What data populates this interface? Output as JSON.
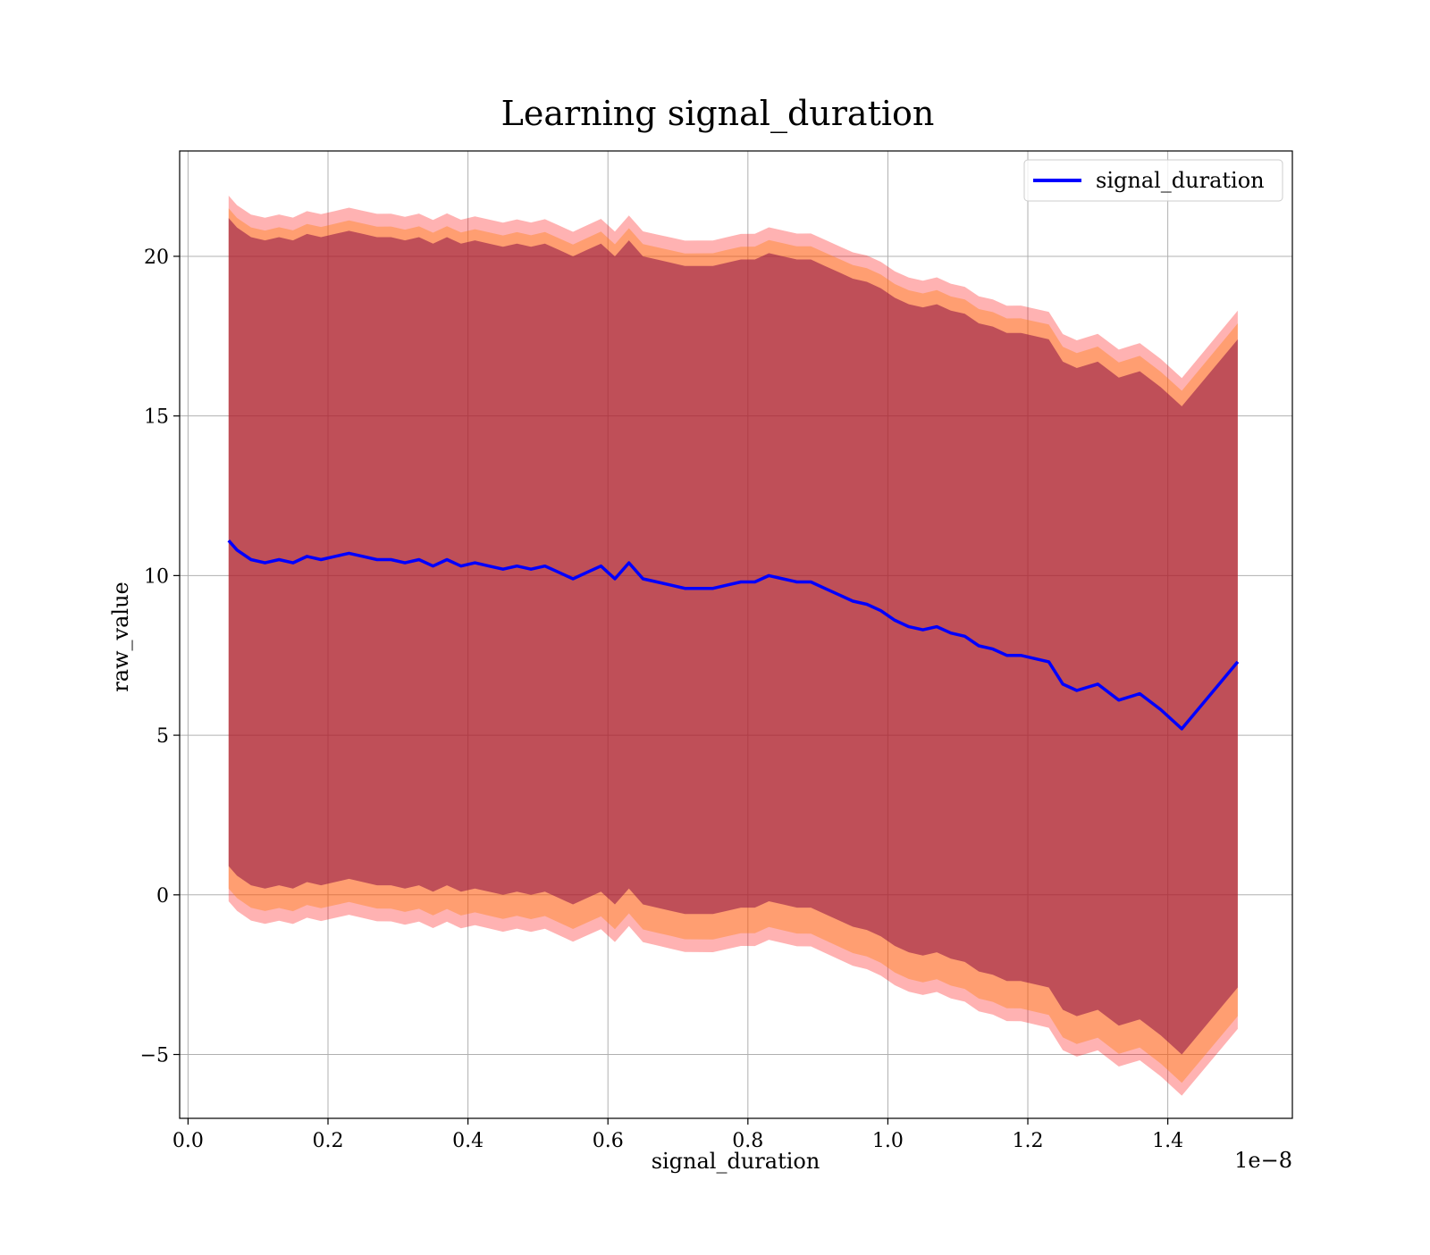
{
  "chart_data": {
    "type": "line",
    "title": "Learning signal_duration",
    "xlabel": "signal_duration",
    "ylabel": "raw_value",
    "x_offset_label": "1e−8",
    "xlim": [
      -0.012,
      1.578
    ],
    "ylim": [
      -7.0,
      23.3
    ],
    "xticks": [
      0.0,
      0.2,
      0.4,
      0.6,
      0.8,
      1.0,
      1.2,
      1.4
    ],
    "xtick_labels": [
      "0.0",
      "0.2",
      "0.4",
      "0.6",
      "0.8",
      "1.0",
      "1.2",
      "1.4"
    ],
    "yticks": [
      -5,
      0,
      5,
      10,
      15,
      20
    ],
    "ytick_labels": [
      "−5",
      "0",
      "5",
      "10",
      "15",
      "20"
    ],
    "grid": true,
    "legend": {
      "position": "upper right",
      "entries": [
        "signal_duration"
      ]
    },
    "colors": {
      "line": "#0000ff",
      "band_outer": "#ff0000",
      "band_middle": "#ff7f0e",
      "band_inner": "#800040",
      "axis": "#000000",
      "grid": "#b0b0b0"
    },
    "series": [
      {
        "name": "signal_duration",
        "x": [
          0.058,
          0.07,
          0.09,
          0.11,
          0.13,
          0.15,
          0.17,
          0.19,
          0.21,
          0.23,
          0.25,
          0.27,
          0.29,
          0.31,
          0.33,
          0.35,
          0.37,
          0.39,
          0.41,
          0.43,
          0.45,
          0.47,
          0.49,
          0.51,
          0.53,
          0.55,
          0.57,
          0.59,
          0.61,
          0.63,
          0.65,
          0.67,
          0.69,
          0.71,
          0.73,
          0.75,
          0.77,
          0.79,
          0.81,
          0.83,
          0.85,
          0.87,
          0.89,
          0.91,
          0.93,
          0.95,
          0.97,
          0.99,
          1.01,
          1.03,
          1.05,
          1.07,
          1.09,
          1.11,
          1.13,
          1.15,
          1.17,
          1.19,
          1.21,
          1.23,
          1.25,
          1.27,
          1.3,
          1.33,
          1.36,
          1.39,
          1.42,
          1.5
        ],
        "y": [
          11.1,
          10.8,
          10.5,
          10.4,
          10.5,
          10.4,
          10.6,
          10.5,
          10.6,
          10.7,
          10.6,
          10.5,
          10.5,
          10.4,
          10.5,
          10.3,
          10.5,
          10.3,
          10.4,
          10.3,
          10.2,
          10.3,
          10.2,
          10.3,
          10.1,
          9.9,
          10.1,
          10.3,
          9.9,
          10.4,
          9.9,
          9.8,
          9.7,
          9.6,
          9.6,
          9.6,
          9.7,
          9.8,
          9.8,
          10.0,
          9.9,
          9.8,
          9.8,
          9.6,
          9.4,
          9.2,
          9.1,
          8.9,
          8.6,
          8.4,
          8.3,
          8.4,
          8.2,
          8.1,
          7.8,
          7.7,
          7.5,
          7.5,
          7.4,
          7.3,
          6.6,
          6.4,
          6.6,
          6.1,
          6.3,
          5.8,
          5.2,
          7.3
        ]
      }
    ],
    "bands": [
      {
        "color": "red",
        "lower_offset": -11.3,
        "upper_offset": 10.8,
        "width_growth": 0.2
      },
      {
        "color": "orange",
        "lower_offset": -10.9,
        "upper_offset": 10.4,
        "width_growth": 0.2
      },
      {
        "color": "purple",
        "lower_offset": -10.2,
        "upper_offset": 10.1,
        "width_growth": 0.0
      }
    ]
  }
}
